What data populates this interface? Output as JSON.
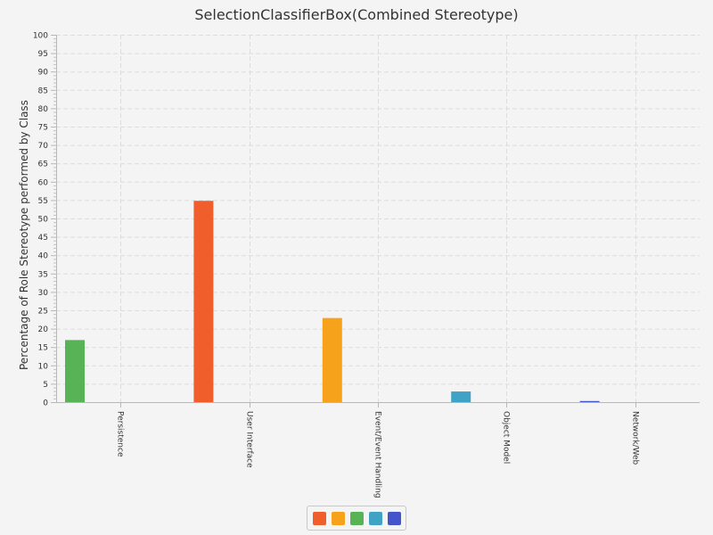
{
  "chart_data": {
    "type": "bar",
    "title": "SelectionClassifierBox(Combined Stereotype)",
    "xlabel": "",
    "ylabel": "Percentage of Role Stereotype performed by Class",
    "categories": [
      "Persistence",
      "User Interface",
      "Event/Event Handling",
      "Object Model",
      "Network/Web"
    ],
    "ylim": [
      0,
      100
    ],
    "yticks": [
      0,
      5,
      10,
      15,
      20,
      25,
      30,
      35,
      40,
      45,
      50,
      55,
      60,
      65,
      70,
      75,
      80,
      85,
      90,
      95,
      100
    ],
    "grid": true,
    "legend_position": "bottom",
    "series": [
      {
        "color": "#f05e2c",
        "values": [
          0,
          54.8,
          0,
          0,
          0
        ]
      },
      {
        "color": "#f7a21b",
        "values": [
          0,
          0,
          22.9,
          0,
          0
        ]
      },
      {
        "color": "#57b356",
        "values": [
          16.9,
          0,
          0,
          0,
          0
        ]
      },
      {
        "color": "#3ea3c4",
        "values": [
          0,
          0,
          0,
          2.9,
          0
        ]
      },
      {
        "color": "#4455cc",
        "values": [
          0,
          0,
          0,
          0,
          0.3
        ]
      }
    ]
  }
}
